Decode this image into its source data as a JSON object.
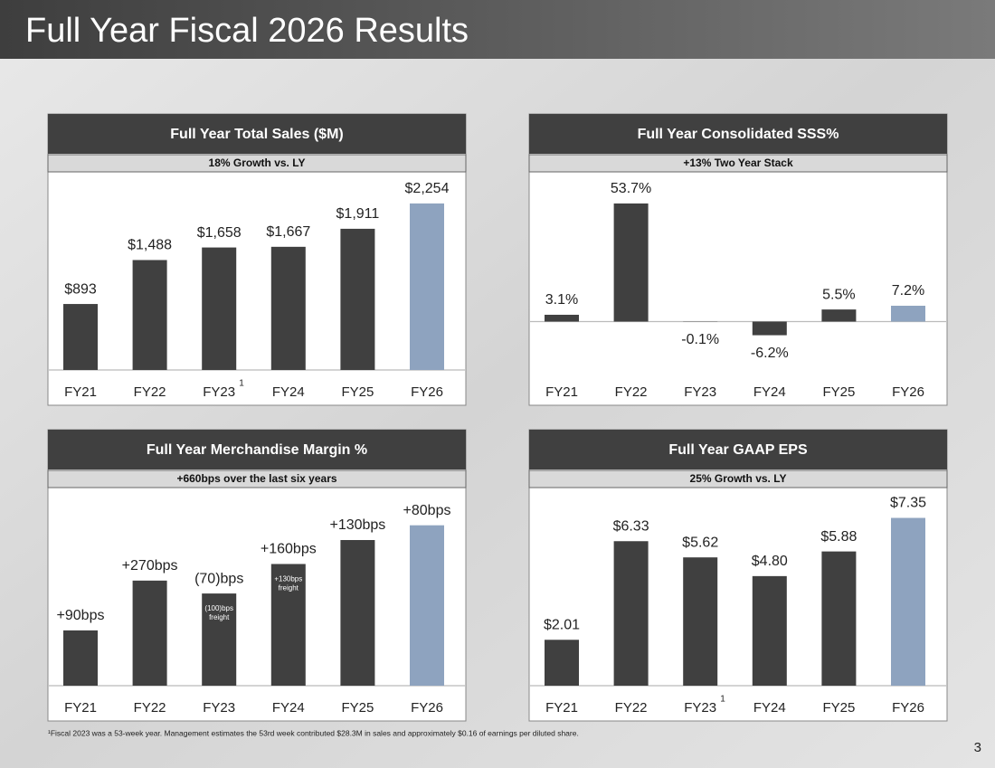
{
  "title": "Full Year Fiscal 2026 Results",
  "footnote": "¹Fiscal 2023 was a 53-week year. Management estimates the 53rd week contributed $28.3M in sales and approximately $0.16 of earnings per diluted share.",
  "page_number": "3",
  "chart_data": [
    {
      "type": "bar",
      "title": "Full Year Total Sales ($M)",
      "subtitle": "18% Growth vs. LY",
      "categories": [
        "FY21",
        "FY22",
        "FY23",
        "FY24",
        "FY25",
        "FY26"
      ],
      "values": [
        893,
        1488,
        1658,
        1667,
        1911,
        2254
      ],
      "value_labels": [
        "$893",
        "$1,488",
        "$1,658",
        "$1,667",
        "$1,911",
        "$2,254"
      ],
      "colors": [
        "#404040",
        "#404040",
        "#404040",
        "#404040",
        "#404040",
        "#8ea3bf"
      ],
      "ylim": [
        0,
        2620
      ],
      "annotations": [
        {
          "category": 2,
          "text": "1"
        }
      ]
    },
    {
      "type": "bar",
      "title": "Full Year Consolidated SSS%",
      "subtitle": "+13% Two Year Stack",
      "categories": [
        "FY21",
        "FY22",
        "FY23",
        "FY24",
        "FY25",
        "FY26"
      ],
      "values": [
        3.1,
        53.7,
        -0.1,
        -6.2,
        5.5,
        7.2
      ],
      "value_labels": [
        "3.1%",
        "53.7%",
        "-0.1%",
        "-6.2%",
        "5.5%",
        "7.2%"
      ],
      "colors": [
        "#404040",
        "#404040",
        "#404040",
        "#404040",
        "#404040",
        "#8ea3bf"
      ],
      "ylim": [
        -22,
        66
      ]
    },
    {
      "type": "waterfall",
      "title": "Full Year Merchandise Margin %",
      "subtitle": "+660bps over the last six years",
      "categories": [
        "FY21",
        "FY22",
        "FY23",
        "FY24",
        "FY25",
        "FY26"
      ],
      "values": [
        90,
        270,
        -70,
        160,
        130,
        80
      ],
      "value_labels": [
        "+90bps",
        "+270bps",
        "(70)bps",
        "+160bps",
        "+130bps",
        "+80bps"
      ],
      "colors": [
        "#404040",
        "#404040",
        "#404040",
        "#404040",
        "#404040",
        "#8ea3bf"
      ],
      "ylim": [
        -210,
        840
      ],
      "bar_notes": [
        {
          "category": 2,
          "lines": [
            "(100)bps",
            "freight"
          ]
        },
        {
          "category": 3,
          "lines": [
            "+130bps",
            "freight"
          ]
        }
      ]
    },
    {
      "type": "bar",
      "title": "Full Year GAAP EPS",
      "subtitle": "25% Growth vs. LY",
      "categories": [
        "FY21",
        "FY22",
        "FY23",
        "FY24",
        "FY25",
        "FY26"
      ],
      "values": [
        2.01,
        6.33,
        5.62,
        4.8,
        5.88,
        7.35
      ],
      "value_labels": [
        "$2.01",
        "$6.33",
        "$5.62",
        "$4.80",
        "$5.88",
        "$7.35"
      ],
      "colors": [
        "#404040",
        "#404040",
        "#404040",
        "#404040",
        "#404040",
        "#8ea3bf"
      ],
      "ylim": [
        0,
        8.48
      ],
      "annotations": [
        {
          "category": 2,
          "text": "1"
        }
      ]
    }
  ]
}
